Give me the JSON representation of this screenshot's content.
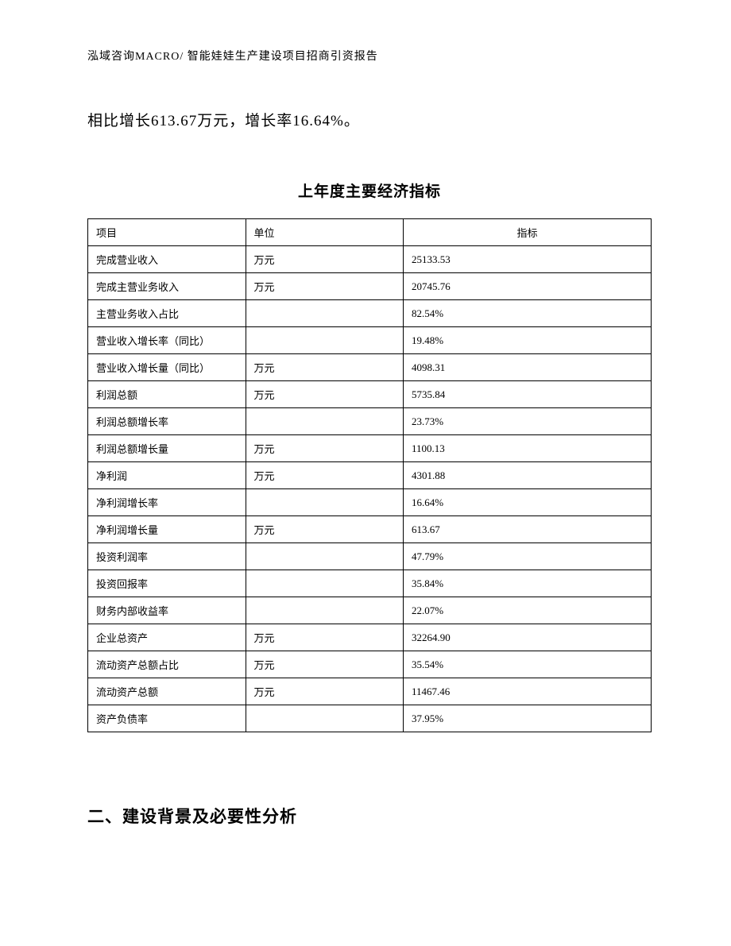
{
  "header": "泓域咨询MACRO/ 智能娃娃生产建设项目招商引资报告",
  "body_text": "相比增长613.67万元，增长率16.64%。",
  "table": {
    "title": "上年度主要经济指标",
    "columns": [
      "项目",
      "单位",
      "指标"
    ],
    "rows": [
      [
        "完成营业收入",
        "万元",
        "25133.53"
      ],
      [
        "完成主营业务收入",
        "万元",
        "20745.76"
      ],
      [
        "主营业务收入占比",
        "",
        "82.54%"
      ],
      [
        "营业收入增长率（同比）",
        "",
        "19.48%"
      ],
      [
        "营业收入增长量（同比）",
        "万元",
        "4098.31"
      ],
      [
        "利润总额",
        "万元",
        "5735.84"
      ],
      [
        "利润总额增长率",
        "",
        "23.73%"
      ],
      [
        "利润总额增长量",
        "万元",
        "1100.13"
      ],
      [
        "净利润",
        "万元",
        "4301.88"
      ],
      [
        "净利润增长率",
        "",
        "16.64%"
      ],
      [
        "净利润增长量",
        "万元",
        "613.67"
      ],
      [
        "投资利润率",
        "",
        "47.79%"
      ],
      [
        "投资回报率",
        "",
        "35.84%"
      ],
      [
        "财务内部收益率",
        "",
        "22.07%"
      ],
      [
        "企业总资产",
        "万元",
        "32264.90"
      ],
      [
        "流动资产总额占比",
        "万元",
        "35.54%"
      ],
      [
        "流动资产总额",
        "万元",
        "11467.46"
      ],
      [
        "资产负债率",
        "",
        "37.95%"
      ]
    ]
  },
  "section_title": "二、建设背景及必要性分析"
}
